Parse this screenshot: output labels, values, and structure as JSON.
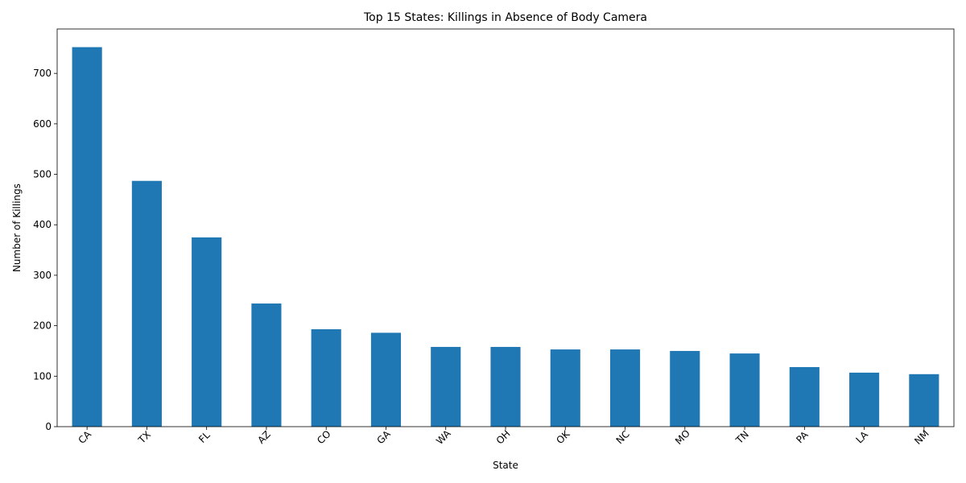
{
  "chart_data": {
    "type": "bar",
    "title": "Top 15 States: Killings in Absence of Body Camera",
    "xlabel": "State",
    "ylabel": "Number of Killings",
    "categories": [
      "CA",
      "TX",
      "FL",
      "AZ",
      "CO",
      "GA",
      "WA",
      "OH",
      "OK",
      "NC",
      "MO",
      "TN",
      "PA",
      "LA",
      "NM"
    ],
    "values": [
      752,
      487,
      375,
      244,
      193,
      186,
      158,
      158,
      153,
      153,
      150,
      145,
      118,
      107,
      104
    ],
    "ylim": [
      0,
      788
    ],
    "yticks": [
      0,
      100,
      200,
      300,
      400,
      500,
      600,
      700
    ],
    "bar_color": "#1f77b4",
    "grid": false,
    "legend": "none"
  }
}
